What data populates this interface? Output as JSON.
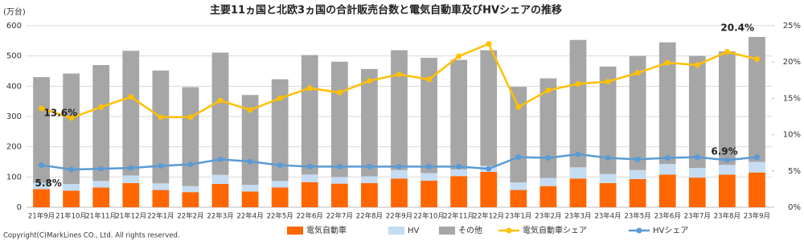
{
  "chart_data": {
    "type": "bar",
    "title": "主要11ヵ国と北欧3ヵ国の合計販売台数と電気自動車及びHVシェアの推移",
    "y_label": "(万台)",
    "copyright": "Copyright(C)MarkLines CO., Ltd. All rights reserved.",
    "categories": [
      "21年9月",
      "21年10月",
      "21年11月",
      "21年12月",
      "22年1月",
      "22年2月",
      "22年3月",
      "22年4月",
      "22年5月",
      "22年6月",
      "22年7月",
      "22年8月",
      "22年9月",
      "22年10月",
      "22年11月",
      "22年12月",
      "23年1月",
      "23年2月",
      "23年3月",
      "23年4月",
      "23年5月",
      "23年6月",
      "23年7月",
      "23年8月",
      "23年9月"
    ],
    "series": [
      {
        "name": "電気自動車",
        "color": "#ff6600",
        "values": [
          60,
          55,
          65,
          80,
          57,
          50,
          77,
          52,
          65,
          83,
          78,
          80,
          95,
          88,
          103,
          117,
          57,
          70,
          95,
          80,
          93,
          108,
          98,
          108,
          115
        ]
      },
      {
        "name": "HV",
        "color": "#c5dcf2",
        "values": [
          20,
          22,
          22,
          25,
          22,
          20,
          30,
          22,
          22,
          25,
          22,
          22,
          28,
          25,
          22,
          20,
          25,
          27,
          37,
          30,
          30,
          35,
          32,
          32,
          35
        ]
      },
      {
        "name": "その他",
        "color": "#a6a6a6",
        "values": [
          350,
          365,
          383,
          412,
          373,
          327,
          404,
          297,
          336,
          395,
          381,
          355,
          396,
          381,
          362,
          382,
          316,
          329,
          421,
          355,
          377,
          402,
          370,
          375,
          413
        ]
      },
      {
        "name": "電気自動車シェア",
        "color": "#ffc000",
        "axis": "y2",
        "values": [
          13.6,
          12.3,
          13.8,
          15.2,
          12.4,
          12.4,
          14.7,
          13.4,
          15.0,
          16.4,
          15.8,
          17.4,
          18.3,
          17.6,
          20.8,
          22.5,
          13.8,
          16.1,
          17.0,
          17.3,
          18.5,
          19.9,
          19.6,
          21.4,
          20.4
        ]
      },
      {
        "name": "HVシェア",
        "color": "#5b9bd5",
        "axis": "y2",
        "values": [
          5.8,
          5.2,
          5.3,
          5.4,
          5.7,
          5.9,
          6.6,
          6.3,
          5.8,
          5.6,
          5.6,
          5.6,
          5.6,
          5.6,
          5.6,
          5.3,
          6.9,
          6.8,
          7.3,
          6.8,
          6.6,
          6.8,
          6.9,
          6.5,
          6.9
        ]
      }
    ],
    "annotations": [
      "13.6%",
      "5.8%",
      "20.4%",
      "6.9%"
    ],
    "ylim": [
      0,
      600
    ],
    "yticks": [
      0,
      100,
      200,
      300,
      400,
      500,
      600
    ],
    "y2lim": [
      0,
      25
    ],
    "y2ticks": [
      {
        "value": 0,
        "label": "0%"
      },
      {
        "value": 5,
        "label": "5%"
      },
      {
        "value": 10,
        "label": "10%"
      },
      {
        "value": 15,
        "label": "15%"
      },
      {
        "value": 20,
        "label": "20%"
      },
      {
        "value": 25,
        "label": "25%"
      }
    ],
    "grid": true,
    "legend": "bottom"
  }
}
